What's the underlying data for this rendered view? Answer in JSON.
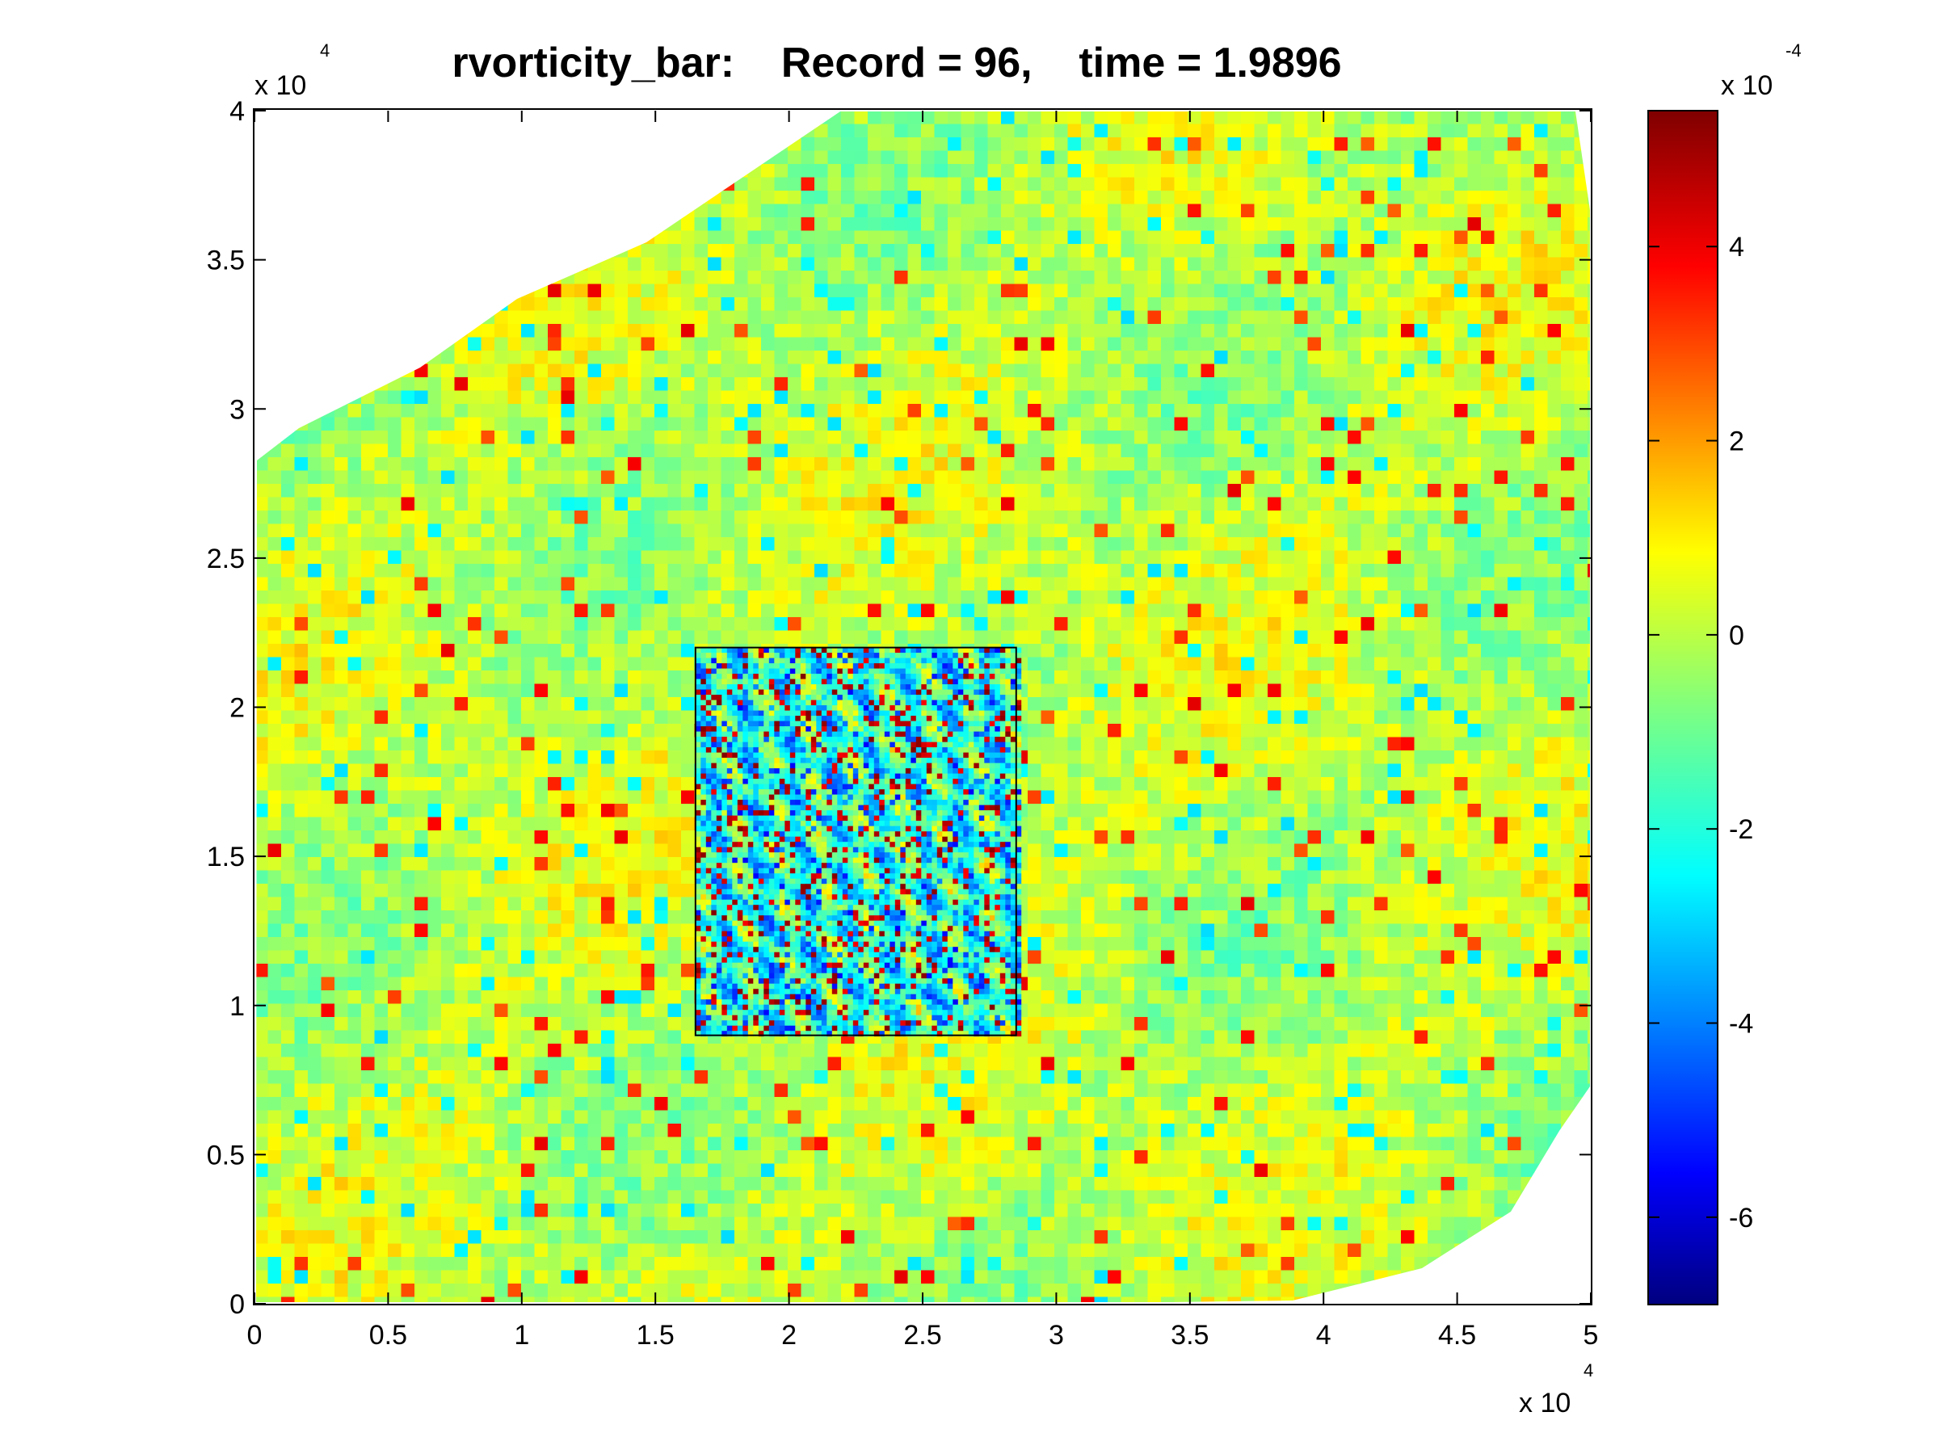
{
  "chart_data": {
    "type": "heatmap",
    "title": "rvorticity_bar:    Record = 96,    time = 1.9896",
    "xlabel": "",
    "ylabel": "",
    "x_ticks": [
      {
        "value": 0,
        "label": "0"
      },
      {
        "value": 5000,
        "label": "0.5"
      },
      {
        "value": 10000,
        "label": "1"
      },
      {
        "value": 15000,
        "label": "1.5"
      },
      {
        "value": 20000,
        "label": "2"
      },
      {
        "value": 25000,
        "label": "2.5"
      },
      {
        "value": 30000,
        "label": "3"
      },
      {
        "value": 35000,
        "label": "3.5"
      },
      {
        "value": 40000,
        "label": "4"
      },
      {
        "value": 45000,
        "label": "4.5"
      },
      {
        "value": 50000,
        "label": "5"
      }
    ],
    "y_ticks": [
      {
        "value": 0,
        "label": "0"
      },
      {
        "value": 5000,
        "label": "0.5"
      },
      {
        "value": 10000,
        "label": "1"
      },
      {
        "value": 15000,
        "label": "1.5"
      },
      {
        "value": 20000,
        "label": "2"
      },
      {
        "value": 25000,
        "label": "2.5"
      },
      {
        "value": 30000,
        "label": "3"
      },
      {
        "value": 35000,
        "label": "3.5"
      },
      {
        "value": 40000,
        "label": "4"
      }
    ],
    "x_multiplier": {
      "base": "x 10",
      "exponent": "4"
    },
    "y_multiplier": {
      "base": "x 10",
      "exponent": "4"
    },
    "xlim": [
      0,
      50000
    ],
    "ylim": [
      0,
      40000
    ],
    "inset_region": {
      "x_range": [
        16500,
        28500
      ],
      "y_range": [
        9000,
        22000
      ]
    },
    "colorbar": {
      "colormap": "jet",
      "range": [
        -0.00069,
        0.00054
      ],
      "ticks": [
        {
          "value": 0.0004,
          "label": "4"
        },
        {
          "value": 0.0002,
          "label": "2"
        },
        {
          "value": 0,
          "label": "0"
        },
        {
          "value": -0.0002,
          "label": "-2"
        },
        {
          "value": -0.0004,
          "label": "-4"
        },
        {
          "value": -0.0006,
          "label": "-6"
        }
      ],
      "multiplier": {
        "base": "x 10",
        "exponent": "-4"
      }
    },
    "grid": false
  }
}
